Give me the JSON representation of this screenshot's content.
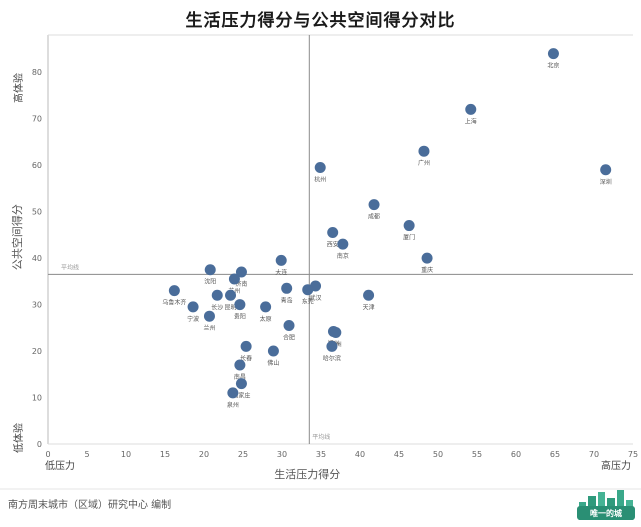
{
  "chart_data": {
    "type": "scatter",
    "title": "生活压力得分与公共空间得分对比",
    "xlabel": "生活压力得分",
    "ylabel": "公共空间得分",
    "xlim": [
      0,
      75
    ],
    "ylim": [
      0,
      88
    ],
    "x_ticks": [
      0,
      5,
      10,
      15,
      20,
      25,
      30,
      35,
      40,
      45,
      50,
      55,
      60,
      65,
      70,
      75
    ],
    "y_ticks": [
      0,
      10,
      20,
      30,
      40,
      50,
      60,
      70,
      80
    ],
    "x_avg": 33.5,
    "y_avg": 36.5,
    "avg_label": "平均线",
    "x_low_label": "低压力",
    "x_high_label": "高压力",
    "y_low_label": "低体验",
    "y_high_label": "高体验",
    "marker_color": "#4a6d9a",
    "points": [
      {
        "city": "北京",
        "x": 64.8,
        "y": 84
      },
      {
        "city": "上海",
        "x": 54.2,
        "y": 72
      },
      {
        "city": "广州",
        "x": 48.2,
        "y": 63
      },
      {
        "city": "深圳",
        "x": 71.5,
        "y": 59
      },
      {
        "city": "杭州",
        "x": 34.9,
        "y": 59.5
      },
      {
        "city": "成都",
        "x": 41.8,
        "y": 51.5
      },
      {
        "city": "厦门",
        "x": 46.3,
        "y": 47
      },
      {
        "city": "西安",
        "x": 36.5,
        "y": 45.5
      },
      {
        "city": "南京",
        "x": 37.8,
        "y": 43
      },
      {
        "city": "重庆",
        "x": 48.6,
        "y": 40
      },
      {
        "city": "大连",
        "x": 29.9,
        "y": 39.5
      },
      {
        "city": "沈阳",
        "x": 20.8,
        "y": 37.5
      },
      {
        "city": "济南",
        "x": 24.8,
        "y": 37
      },
      {
        "city": "苏州",
        "x": 23.9,
        "y": 35.5
      },
      {
        "city": "武汉",
        "x": 34.3,
        "y": 34
      },
      {
        "city": "乌鲁木齐",
        "x": 16.2,
        "y": 33
      },
      {
        "city": "青岛",
        "x": 30.6,
        "y": 33.5
      },
      {
        "city": "东莞",
        "x": 33.3,
        "y": 33.2
      },
      {
        "city": "天津",
        "x": 41.1,
        "y": 32
      },
      {
        "city": "长沙",
        "x": 21.7,
        "y": 32
      },
      {
        "city": "昆明",
        "x": 23.4,
        "y": 32
      },
      {
        "city": "宁波",
        "x": 18.6,
        "y": 29.5
      },
      {
        "city": "太原",
        "x": 27.9,
        "y": 29.5
      },
      {
        "city": "贵阳",
        "x": 24.6,
        "y": 30
      },
      {
        "city": "兰州",
        "x": 20.7,
        "y": 27.5
      },
      {
        "city": "合肥",
        "x": 30.9,
        "y": 25.5
      },
      {
        "city": "郑州",
        "x": 36.6,
        "y": 24.2
      },
      {
        "city": "福州",
        "x": 36.9,
        "y": 24.0
      },
      {
        "city": "哈尔滨",
        "x": 36.4,
        "y": 21.0
      },
      {
        "city": "长春",
        "x": 25.4,
        "y": 21.0
      },
      {
        "city": "佛山",
        "x": 28.9,
        "y": 20.0
      },
      {
        "city": "南昌",
        "x": 24.6,
        "y": 17.0
      },
      {
        "city": "石家庄",
        "x": 24.8,
        "y": 13.0
      },
      {
        "city": "泉州",
        "x": 23.7,
        "y": 11.0
      }
    ]
  },
  "footer": {
    "credit": "南方周末城市（区域）研究中心  编制",
    "logo_text": "唯一的城"
  }
}
